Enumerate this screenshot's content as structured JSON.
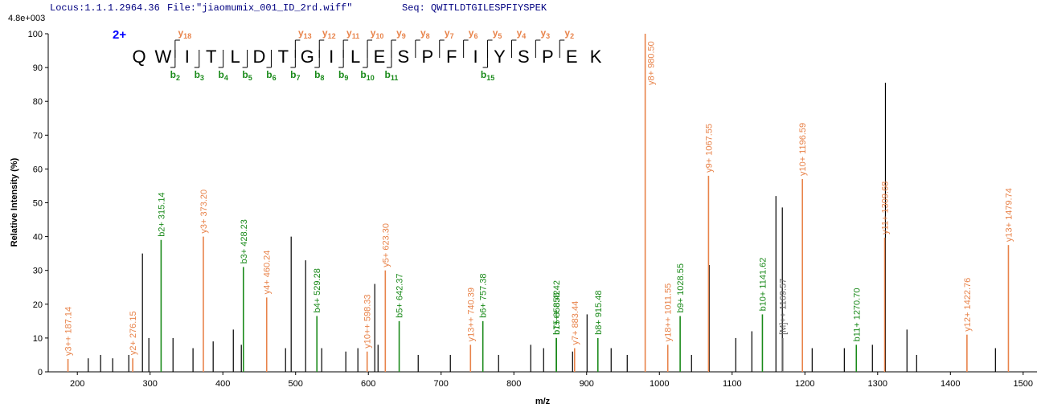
{
  "header": {
    "locus": "Locus:1.1.1.2964.36",
    "file": "File:\"jiaomumix_001_ID_2rd.wiff\"",
    "seq": "Seq: QWITLDTGILESPFIYSPEK"
  },
  "chart_data": {
    "type": "spectrum",
    "scale_label": "4.8e+003",
    "charge": "2+",
    "residues": [
      "Q",
      "W",
      "I",
      "T",
      "L",
      "D",
      "T",
      "G",
      "I",
      "L",
      "E",
      "S",
      "P",
      "F",
      "I",
      "Y",
      "S",
      "P",
      "E",
      "K"
    ],
    "b_ions": [
      {
        "ion": "b",
        "n": 2
      },
      {
        "ion": "b",
        "n": 3
      },
      {
        "ion": "b",
        "n": 4
      },
      {
        "ion": "b",
        "n": 5
      },
      {
        "ion": "b",
        "n": 6
      },
      {
        "ion": "b",
        "n": 7
      },
      {
        "ion": "b",
        "n": 8
      },
      {
        "ion": "b",
        "n": 9
      },
      {
        "ion": "b",
        "n": 10
      },
      {
        "ion": "b",
        "n": 11
      },
      {
        "ion": "b",
        "n": 15
      }
    ],
    "y_ions": [
      {
        "ion": "y",
        "n": 18
      },
      {
        "ion": "y",
        "n": 13
      },
      {
        "ion": "y",
        "n": 12
      },
      {
        "ion": "y",
        "n": 11
      },
      {
        "ion": "y",
        "n": 10
      },
      {
        "ion": "y",
        "n": 9
      },
      {
        "ion": "y",
        "n": 8
      },
      {
        "ion": "y",
        "n": 7
      },
      {
        "ion": "y",
        "n": 6
      },
      {
        "ion": "y",
        "n": 5
      },
      {
        "ion": "y",
        "n": 4
      },
      {
        "ion": "y",
        "n": 3
      },
      {
        "ion": "y",
        "n": 2
      }
    ],
    "b_color": "#1a8a1a",
    "y_color": "#e8834a",
    "xlabel": "m/z",
    "ylabel": "Relative  Intensity (%)",
    "xlim": [
      160,
      1519
    ],
    "ylim": [
      0,
      100
    ],
    "xticks": [
      200,
      300,
      400,
      500,
      600,
      700,
      800,
      900,
      1000,
      1100,
      1200,
      1300,
      1400,
      1500
    ],
    "yticks": [
      0,
      10,
      20,
      30,
      40,
      50,
      60,
      70,
      80,
      90,
      100
    ],
    "series": [
      {
        "color": "#000000",
        "x": [
          215,
          232,
          248.6,
          270.7,
          289.5,
          298.3,
          331.5,
          359,
          386.7,
          414.4,
          425.4,
          486.2,
          493.9,
          513.8,
          535.9,
          569,
          585.6,
          608.8,
          613.3,
          668.5,
          712.7,
          779,
          823.2,
          840.9,
          880.7,
          900.6,
          933.7,
          955.8,
          1044.2,
          1068.5,
          1105,
          1127.1,
          1160.2,
          1169,
          1210,
          1254.2,
          1292.8,
          1310.7,
          1340.3,
          1353.6,
          1461.9
        ],
        "values": [
          4,
          5,
          4,
          5,
          35,
          10,
          10,
          7,
          9,
          12.5,
          8,
          7,
          40,
          33,
          7,
          6,
          7,
          26,
          8,
          5,
          5,
          5,
          8,
          7,
          6,
          17,
          7,
          5,
          5,
          31.6,
          10,
          12,
          52,
          48.6,
          7,
          7,
          8,
          85.5,
          12.5,
          5,
          7
        ]
      },
      {
        "color": "#e8834a",
        "x": [
          187.14,
          276.15,
          373.2,
          460.24,
          598.33,
          623.3,
          740.39,
          883.44,
          980.5,
          1011.55,
          1067.55,
          1196.59,
          1309.68,
          1422.76,
          1479.74
        ],
        "values": [
          3.8,
          4,
          40,
          22,
          6,
          30,
          8,
          7,
          100,
          8,
          58,
          57,
          39.7,
          11,
          37.5
        ],
        "labels": [
          "y3++ 187.14",
          "y2+ 276.15",
          "y3+ 373.20",
          "y4+ 460.24",
          "y10++ 598.33",
          "y5+ 623.30",
          "y13++ 740.39",
          "y7+ 883.44",
          "y8+ 980.50",
          "y18++ 1011.55",
          "y9+ 1067.55",
          "y10+ 1196.59",
          "y11+ 1309.68",
          "y12+ 1422.76",
          "y13+ 1479.74"
        ]
      },
      {
        "color": "#1a8a1a",
        "x": [
          315.14,
          428.23,
          529.28,
          642.37,
          757.38,
          858.42,
          858.42,
          915.48,
          1028.55,
          1141.62,
          1270.7
        ],
        "values": [
          39,
          31,
          16.5,
          15,
          15,
          10,
          10,
          10,
          16.5,
          17,
          8
        ],
        "labels": [
          "b2+ 315.14",
          "b3+ 428.23",
          "b4+ 529.28",
          "b5+ 642.37",
          "b6+ 757.38",
          "b7+ 858.42",
          "b15++ 858.42",
          "b8+ 915.48",
          "b9+ 1028.55",
          "b10+ 1141.62",
          "b11+ 1270.70"
        ]
      },
      {
        "color": "#666666",
        "x": [
          1169.57
        ],
        "values": [
          10
        ],
        "labels": [
          "[M]++ 1169.57"
        ]
      }
    ]
  }
}
